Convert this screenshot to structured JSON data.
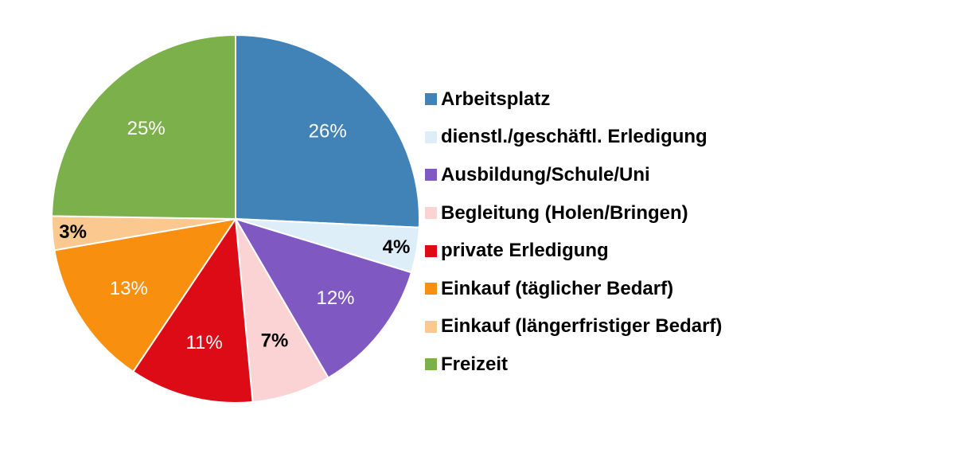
{
  "chart_data": {
    "type": "pie",
    "title": "",
    "start": "12 o'clock",
    "direction": "clockwise",
    "legend_position": "right",
    "slices": [
      {
        "name": "Arbeitsplatz",
        "value": 26,
        "label": "26%",
        "color": "#4283b7",
        "label_color": "#ffffff",
        "label_bold": false
      },
      {
        "name": "dienstl./geschäftl. Erledigung",
        "value": 4,
        "label": "4%",
        "color": "#ddeef9",
        "label_color": "#000000",
        "label_bold": true
      },
      {
        "name": "Ausbildung/Schule/Uni",
        "value": 12,
        "label": "12%",
        "color": "#7f58c2",
        "label_color": "#ffffff",
        "label_bold": false
      },
      {
        "name": "Begleitung (Holen/Bringen)",
        "value": 7,
        "label": "7%",
        "color": "#fbd3d5",
        "label_color": "#000000",
        "label_bold": true
      },
      {
        "name": "private Erledigung",
        "value": 11,
        "label": "11%",
        "color": "#dc0b16",
        "label_color": "#ffffff",
        "label_bold": false
      },
      {
        "name": "Einkauf (täglicher Bedarf)",
        "value": 13,
        "label": "13%",
        "color": "#f98f0f",
        "label_color": "#ffffff",
        "label_bold": false
      },
      {
        "name": "Einkauf (längerfristiger Bedarf)",
        "value": 3,
        "label": "3%",
        "color": "#fbc990",
        "label_color": "#000000",
        "label_bold": true
      },
      {
        "name": "Freizeit",
        "value": 25,
        "label": "25%",
        "color": "#7cb04b",
        "label_color": "#ffffff",
        "label_bold": false
      }
    ]
  }
}
